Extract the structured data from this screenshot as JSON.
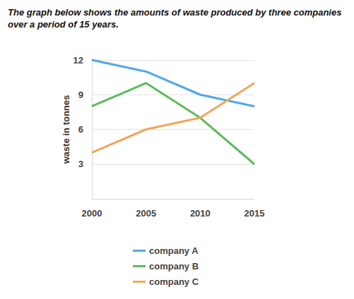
{
  "chart_data": {
    "type": "line",
    "title": "The graph below shows the amounts of waste produced by three companies over a period of 15 years.",
    "y_label": "waste in tonnes",
    "categories": [
      "2000",
      "2005",
      "2010",
      "2015"
    ],
    "series": [
      {
        "name": "company A",
        "color": "#4fa8e8",
        "values": [
          12,
          11,
          9,
          8
        ]
      },
      {
        "name": "company B",
        "color": "#5dba5b",
        "values": [
          8,
          10,
          7,
          3
        ]
      },
      {
        "name": "company C",
        "color": "#f2a65a",
        "values": [
          4,
          6,
          7,
          10
        ]
      }
    ],
    "ylim": [
      0,
      12
    ],
    "yticks": [
      3,
      6,
      9,
      12
    ],
    "grid": true,
    "legend": "bottom",
    "marker": "none",
    "line_style": "solid"
  }
}
